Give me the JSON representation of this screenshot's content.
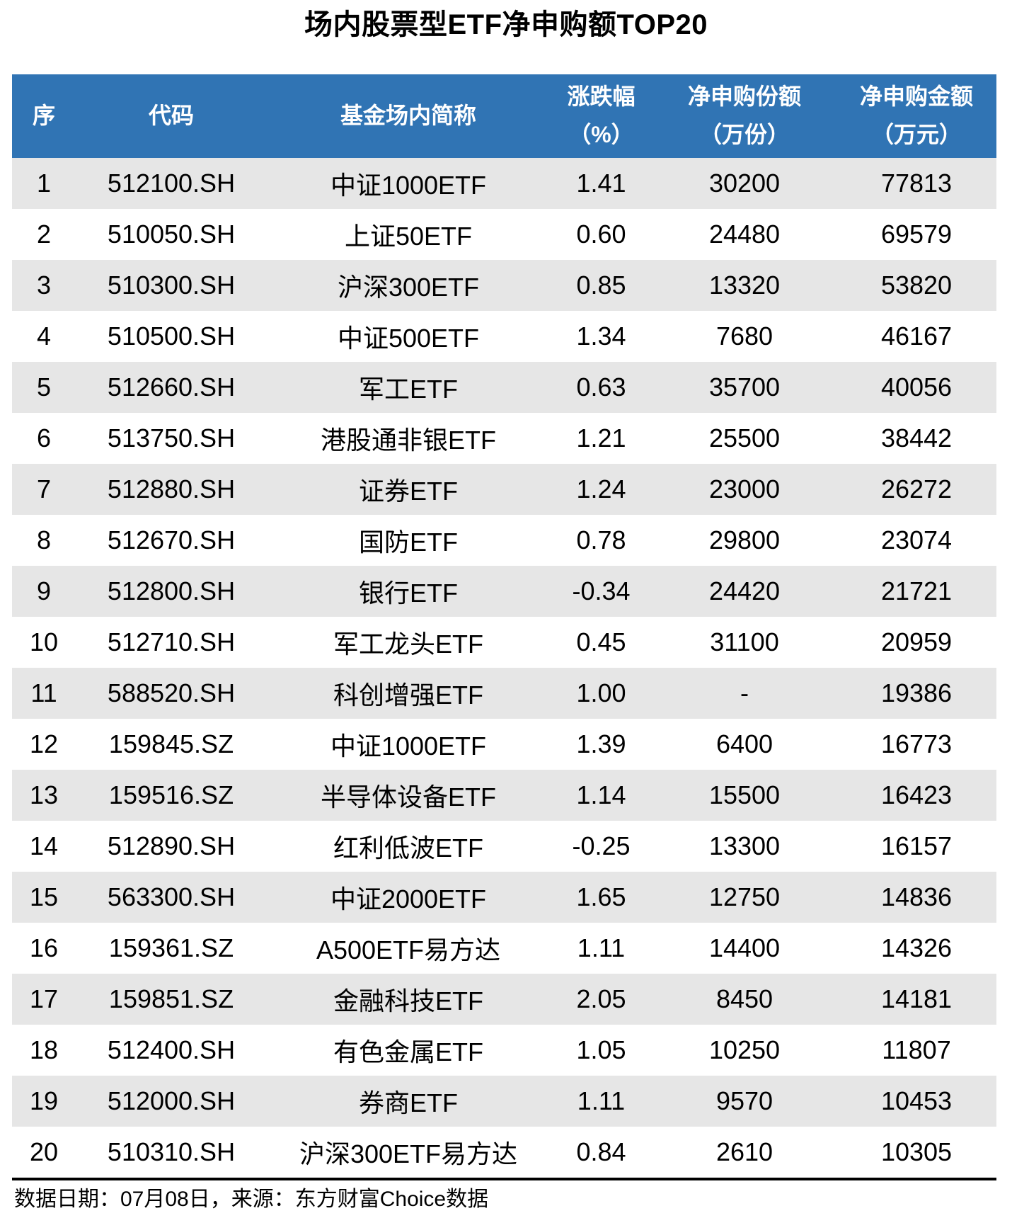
{
  "title": "场内股票型ETF净申购额TOP20",
  "chart_data": {
    "type": "table",
    "title": "场内股票型ETF净申购额TOP20",
    "columns": [
      {
        "label": "序",
        "sub": ""
      },
      {
        "label": "代码",
        "sub": ""
      },
      {
        "label": "基金场内简称",
        "sub": ""
      },
      {
        "label": "涨跌幅",
        "sub": "（%）"
      },
      {
        "label": "净申购份额",
        "sub": "（万份）"
      },
      {
        "label": "净申购金额",
        "sub": "（万元）"
      }
    ],
    "rows": [
      [
        "1",
        "512100.SH",
        "中证1000ETF",
        "1.41",
        "30200",
        "77813"
      ],
      [
        "2",
        "510050.SH",
        "上证50ETF",
        "0.60",
        "24480",
        "69579"
      ],
      [
        "3",
        "510300.SH",
        "沪深300ETF",
        "0.85",
        "13320",
        "53820"
      ],
      [
        "4",
        "510500.SH",
        "中证500ETF",
        "1.34",
        "7680",
        "46167"
      ],
      [
        "5",
        "512660.SH",
        "军工ETF",
        "0.63",
        "35700",
        "40056"
      ],
      [
        "6",
        "513750.SH",
        "港股通非银ETF",
        "1.21",
        "25500",
        "38442"
      ],
      [
        "7",
        "512880.SH",
        "证券ETF",
        "1.24",
        "23000",
        "26272"
      ],
      [
        "8",
        "512670.SH",
        "国防ETF",
        "0.78",
        "29800",
        "23074"
      ],
      [
        "9",
        "512800.SH",
        "银行ETF",
        "-0.34",
        "24420",
        "21721"
      ],
      [
        "10",
        "512710.SH",
        "军工龙头ETF",
        "0.45",
        "31100",
        "20959"
      ],
      [
        "11",
        "588520.SH",
        "科创增强ETF",
        "1.00",
        "-",
        "19386"
      ],
      [
        "12",
        "159845.SZ",
        "中证1000ETF",
        "1.39",
        "6400",
        "16773"
      ],
      [
        "13",
        "159516.SZ",
        "半导体设备ETF",
        "1.14",
        "15500",
        "16423"
      ],
      [
        "14",
        "512890.SH",
        "红利低波ETF",
        "-0.25",
        "13300",
        "16157"
      ],
      [
        "15",
        "563300.SH",
        "中证2000ETF",
        "1.65",
        "12750",
        "14836"
      ],
      [
        "16",
        "159361.SZ",
        "A500ETF易方达",
        "1.11",
        "14400",
        "14326"
      ],
      [
        "17",
        "159851.SZ",
        "金融科技ETF",
        "2.05",
        "8450",
        "14181"
      ],
      [
        "18",
        "512400.SH",
        "有色金属ETF",
        "1.05",
        "10250",
        "11807"
      ],
      [
        "19",
        "512000.SH",
        "券商ETF",
        "1.11",
        "9570",
        "10453"
      ],
      [
        "20",
        "510310.SH",
        "沪深300ETF易方达",
        "0.84",
        "2610",
        "10305"
      ]
    ]
  },
  "footer": {
    "note": "数据日期：07月08日，来源：东方财富Choice数据"
  },
  "colors": {
    "header_bg": "#3074B4",
    "header_text": "#FFFFFF",
    "row_alt_bg": "#E6E6E6",
    "text": "#000000",
    "divider": "#000000"
  }
}
